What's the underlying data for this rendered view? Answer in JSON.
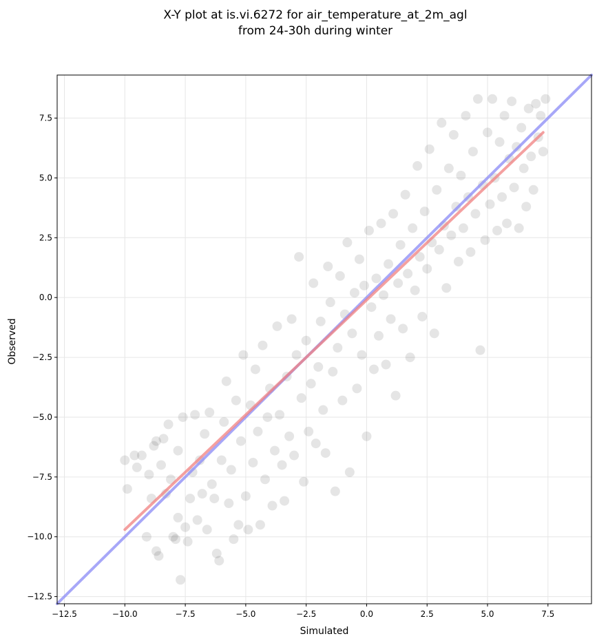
{
  "chart_data": {
    "type": "scatter",
    "title_lines": [
      "X-Y plot at is.vi.6272 for air_temperature_at_2m_agl",
      "from 24-30h during winter"
    ],
    "xlabel": "Simulated",
    "ylabel": "Observed",
    "xlim": [
      -12.8,
      9.3
    ],
    "ylim": [
      -12.8,
      9.3
    ],
    "xticks": [
      -12.5,
      -10.0,
      -7.5,
      -5.0,
      -2.5,
      0.0,
      2.5,
      5.0,
      7.5
    ],
    "yticks": [
      -12.5,
      -10.0,
      -7.5,
      -5.0,
      -2.5,
      0.0,
      2.5,
      5.0,
      7.5
    ],
    "xtick_labels": [
      "−12.5",
      "−10.0",
      "−7.5",
      "−5.0",
      "−2.5",
      "0.0",
      "2.5",
      "5.0",
      "7.5"
    ],
    "ytick_labels": [
      "−12.5",
      "−10.0",
      "−7.5",
      "−5.0",
      "−2.5",
      "0.0",
      "2.5",
      "5.0",
      "7.5"
    ],
    "grid": true,
    "points": [
      [
        -10.0,
        -6.8
      ],
      [
        -9.9,
        -8.0
      ],
      [
        -9.6,
        -6.6
      ],
      [
        -9.5,
        -7.1
      ],
      [
        -9.3,
        -6.6
      ],
      [
        -9.1,
        -10.0
      ],
      [
        -9.0,
        -7.4
      ],
      [
        -8.9,
        -8.4
      ],
      [
        -8.8,
        -6.2
      ],
      [
        -8.7,
        -6.0
      ],
      [
        -8.7,
        -10.6
      ],
      [
        -8.6,
        -10.8
      ],
      [
        -8.5,
        -7.0
      ],
      [
        -8.4,
        -5.9
      ],
      [
        -8.3,
        -8.2
      ],
      [
        -8.2,
        -5.3
      ],
      [
        -8.1,
        -7.6
      ],
      [
        -8.0,
        -10.0
      ],
      [
        -7.9,
        -10.1
      ],
      [
        -7.8,
        -9.2
      ],
      [
        -7.8,
        -6.4
      ],
      [
        -7.7,
        -11.8
      ],
      [
        -7.6,
        -5.0
      ],
      [
        -7.5,
        -9.6
      ],
      [
        -7.4,
        -10.2
      ],
      [
        -7.3,
        -8.4
      ],
      [
        -7.2,
        -7.3
      ],
      [
        -7.1,
        -4.9
      ],
      [
        -7.0,
        -9.3
      ],
      [
        -6.9,
        -6.8
      ],
      [
        -6.8,
        -8.2
      ],
      [
        -6.7,
        -5.7
      ],
      [
        -6.6,
        -9.7
      ],
      [
        -6.5,
        -4.8
      ],
      [
        -6.4,
        -7.8
      ],
      [
        -6.3,
        -8.4
      ],
      [
        -6.2,
        -10.7
      ],
      [
        -6.1,
        -11.0
      ],
      [
        -6.0,
        -6.8
      ],
      [
        -5.9,
        -5.2
      ],
      [
        -5.8,
        -3.5
      ],
      [
        -5.7,
        -8.6
      ],
      [
        -5.6,
        -7.2
      ],
      [
        -5.5,
        -10.1
      ],
      [
        -5.4,
        -4.3
      ],
      [
        -5.3,
        -9.5
      ],
      [
        -5.2,
        -6.0
      ],
      [
        -5.1,
        -2.4
      ],
      [
        -5.0,
        -8.3
      ],
      [
        -4.9,
        -9.7
      ],
      [
        -4.8,
        -4.5
      ],
      [
        -4.7,
        -6.9
      ],
      [
        -4.6,
        -3.0
      ],
      [
        -4.5,
        -5.6
      ],
      [
        -4.4,
        -9.5
      ],
      [
        -4.3,
        -2.0
      ],
      [
        -4.2,
        -7.6
      ],
      [
        -4.1,
        -5.0
      ],
      [
        -4.0,
        -3.8
      ],
      [
        -3.9,
        -8.7
      ],
      [
        -3.8,
        -6.4
      ],
      [
        -3.7,
        -1.2
      ],
      [
        -3.6,
        -4.9
      ],
      [
        -3.5,
        -7.0
      ],
      [
        -3.4,
        -8.5
      ],
      [
        -3.3,
        -3.3
      ],
      [
        -3.2,
        -5.8
      ],
      [
        -3.1,
        -0.9
      ],
      [
        -3.0,
        -6.6
      ],
      [
        -2.9,
        -2.4
      ],
      [
        -2.8,
        1.7
      ],
      [
        -2.7,
        -4.2
      ],
      [
        -2.6,
        -7.7
      ],
      [
        -2.5,
        -1.8
      ],
      [
        -2.4,
        -5.6
      ],
      [
        -2.3,
        -3.6
      ],
      [
        -2.2,
        0.6
      ],
      [
        -2.1,
        -6.1
      ],
      [
        -2.0,
        -2.9
      ],
      [
        -1.9,
        -1.0
      ],
      [
        -1.8,
        -4.7
      ],
      [
        -1.7,
        -6.5
      ],
      [
        -1.6,
        1.3
      ],
      [
        -1.5,
        -0.2
      ],
      [
        -1.4,
        -3.1
      ],
      [
        -1.3,
        -8.1
      ],
      [
        -1.2,
        -2.1
      ],
      [
        -1.1,
        0.9
      ],
      [
        -1.0,
        -4.3
      ],
      [
        -0.9,
        -0.7
      ],
      [
        -0.8,
        2.3
      ],
      [
        -0.7,
        -7.3
      ],
      [
        -0.6,
        -1.5
      ],
      [
        -0.5,
        0.2
      ],
      [
        -0.4,
        -3.8
      ],
      [
        -0.3,
        1.6
      ],
      [
        -0.2,
        -2.4
      ],
      [
        -0.1,
        0.5
      ],
      [
        0.0,
        -5.8
      ],
      [
        0.1,
        2.8
      ],
      [
        0.2,
        -0.4
      ],
      [
        0.3,
        -3.0
      ],
      [
        0.4,
        0.8
      ],
      [
        0.5,
        -1.6
      ],
      [
        0.6,
        3.1
      ],
      [
        0.7,
        0.1
      ],
      [
        0.8,
        -2.8
      ],
      [
        0.9,
        1.4
      ],
      [
        1.0,
        -0.9
      ],
      [
        1.1,
        3.5
      ],
      [
        1.2,
        -4.1
      ],
      [
        1.3,
        0.6
      ],
      [
        1.4,
        2.2
      ],
      [
        1.5,
        -1.3
      ],
      [
        1.6,
        4.3
      ],
      [
        1.7,
        1.0
      ],
      [
        1.8,
        -2.5
      ],
      [
        1.9,
        2.9
      ],
      [
        2.0,
        0.3
      ],
      [
        2.1,
        5.5
      ],
      [
        2.2,
        1.7
      ],
      [
        2.3,
        -0.8
      ],
      [
        2.4,
        3.6
      ],
      [
        2.5,
        1.2
      ],
      [
        2.6,
        6.2
      ],
      [
        2.7,
        2.3
      ],
      [
        2.8,
        -1.5
      ],
      [
        2.9,
        4.5
      ],
      [
        3.0,
        2.0
      ],
      [
        3.1,
        7.3
      ],
      [
        3.2,
        3.0
      ],
      [
        3.3,
        0.4
      ],
      [
        3.4,
        5.4
      ],
      [
        3.5,
        2.6
      ],
      [
        3.6,
        6.8
      ],
      [
        3.7,
        3.8
      ],
      [
        3.8,
        1.5
      ],
      [
        3.9,
        5.1
      ],
      [
        4.0,
        2.9
      ],
      [
        4.1,
        7.6
      ],
      [
        4.2,
        4.2
      ],
      [
        4.3,
        1.9
      ],
      [
        4.4,
        6.1
      ],
      [
        4.5,
        3.5
      ],
      [
        4.6,
        8.3
      ],
      [
        4.7,
        -2.2
      ],
      [
        4.8,
        4.7
      ],
      [
        4.9,
        2.4
      ],
      [
        5.0,
        6.9
      ],
      [
        5.1,
        3.9
      ],
      [
        5.2,
        8.3
      ],
      [
        5.3,
        5.0
      ],
      [
        5.4,
        2.8
      ],
      [
        5.5,
        6.5
      ],
      [
        5.6,
        4.2
      ],
      [
        5.7,
        7.6
      ],
      [
        5.8,
        3.1
      ],
      [
        5.9,
        5.8
      ],
      [
        6.0,
        8.2
      ],
      [
        6.1,
        4.6
      ],
      [
        6.2,
        6.3
      ],
      [
        6.3,
        2.9
      ],
      [
        6.4,
        7.1
      ],
      [
        6.5,
        5.4
      ],
      [
        6.6,
        3.8
      ],
      [
        6.7,
        7.9
      ],
      [
        6.8,
        5.9
      ],
      [
        6.9,
        4.5
      ],
      [
        7.0,
        8.1
      ],
      [
        7.1,
        6.7
      ],
      [
        7.2,
        7.6
      ],
      [
        7.3,
        6.1
      ],
      [
        7.4,
        8.3
      ]
    ],
    "fit_line": {
      "x": [
        -10.0,
        7.3
      ],
      "y": [
        -9.7,
        6.9
      ],
      "color": "#f08080"
    },
    "identity_line": {
      "x": [
        -12.8,
        9.3
      ],
      "y": [
        -12.8,
        9.3
      ],
      "color": "#8a8af5"
    },
    "point_color": "#000000"
  }
}
